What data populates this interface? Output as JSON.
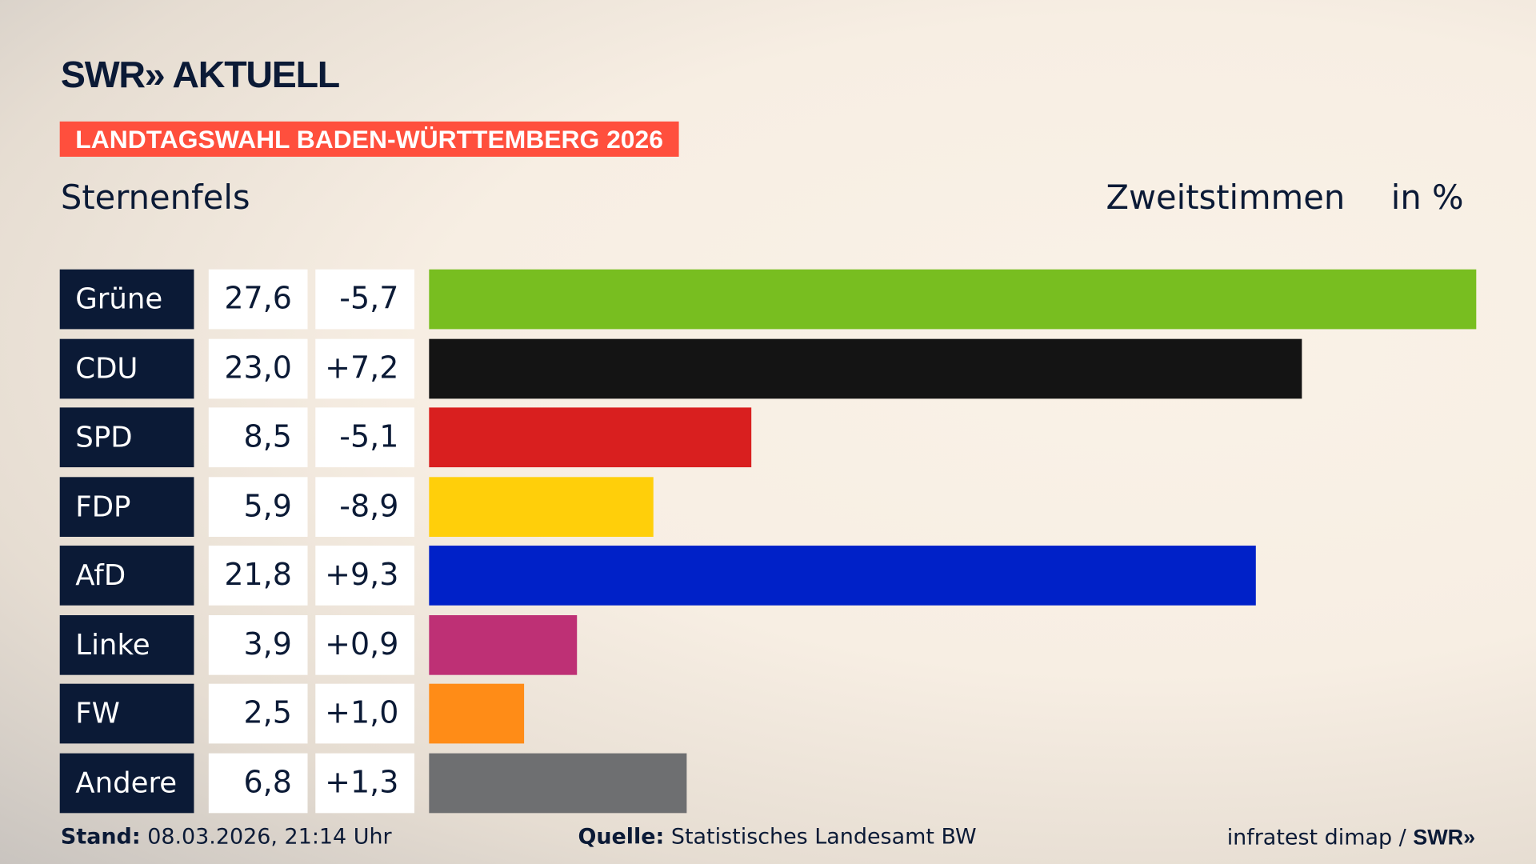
{
  "header": {
    "logo": "SWR» AKTUELL",
    "banner": "LANDTAGSWAHL BADEN-WÜRTTEMBERG 2026",
    "place": "Sternenfels",
    "measure": "Zweitstimmen",
    "unit": "in %"
  },
  "chart_data": {
    "type": "bar",
    "orientation": "horizontal",
    "categories": [
      "Grüne",
      "CDU",
      "SPD",
      "FDP",
      "AfD",
      "Linke",
      "FW",
      "Andere"
    ],
    "values": [
      27.6,
      23.0,
      8.5,
      5.9,
      21.8,
      3.9,
      2.5,
      6.8
    ],
    "value_labels": [
      "27,6",
      "23,0",
      "8,5",
      "5,9",
      "21,8",
      "3,9",
      "2,5",
      "6,8"
    ],
    "changes": [
      "-5,7",
      "+7,2",
      "-5,1",
      "-8,9",
      "+9,3",
      "+0,9",
      "+1,0",
      "+1,3"
    ],
    "colors": [
      "#78be20",
      "#141414",
      "#d91f1f",
      "#ffcf0a",
      "#0021c8",
      "#be3075",
      "#ff8c17",
      "#6e6f71"
    ],
    "xlim": [
      0,
      27.6
    ],
    "grid": false
  },
  "footer": {
    "stand_label": "Stand:",
    "stand_value": "08.03.2026, 21:14 Uhr",
    "source_label": "Quelle:",
    "source_value": "Statistisches Landesamt BW",
    "credit": "infratest dimap / ",
    "credit_logo": "SWR»"
  }
}
